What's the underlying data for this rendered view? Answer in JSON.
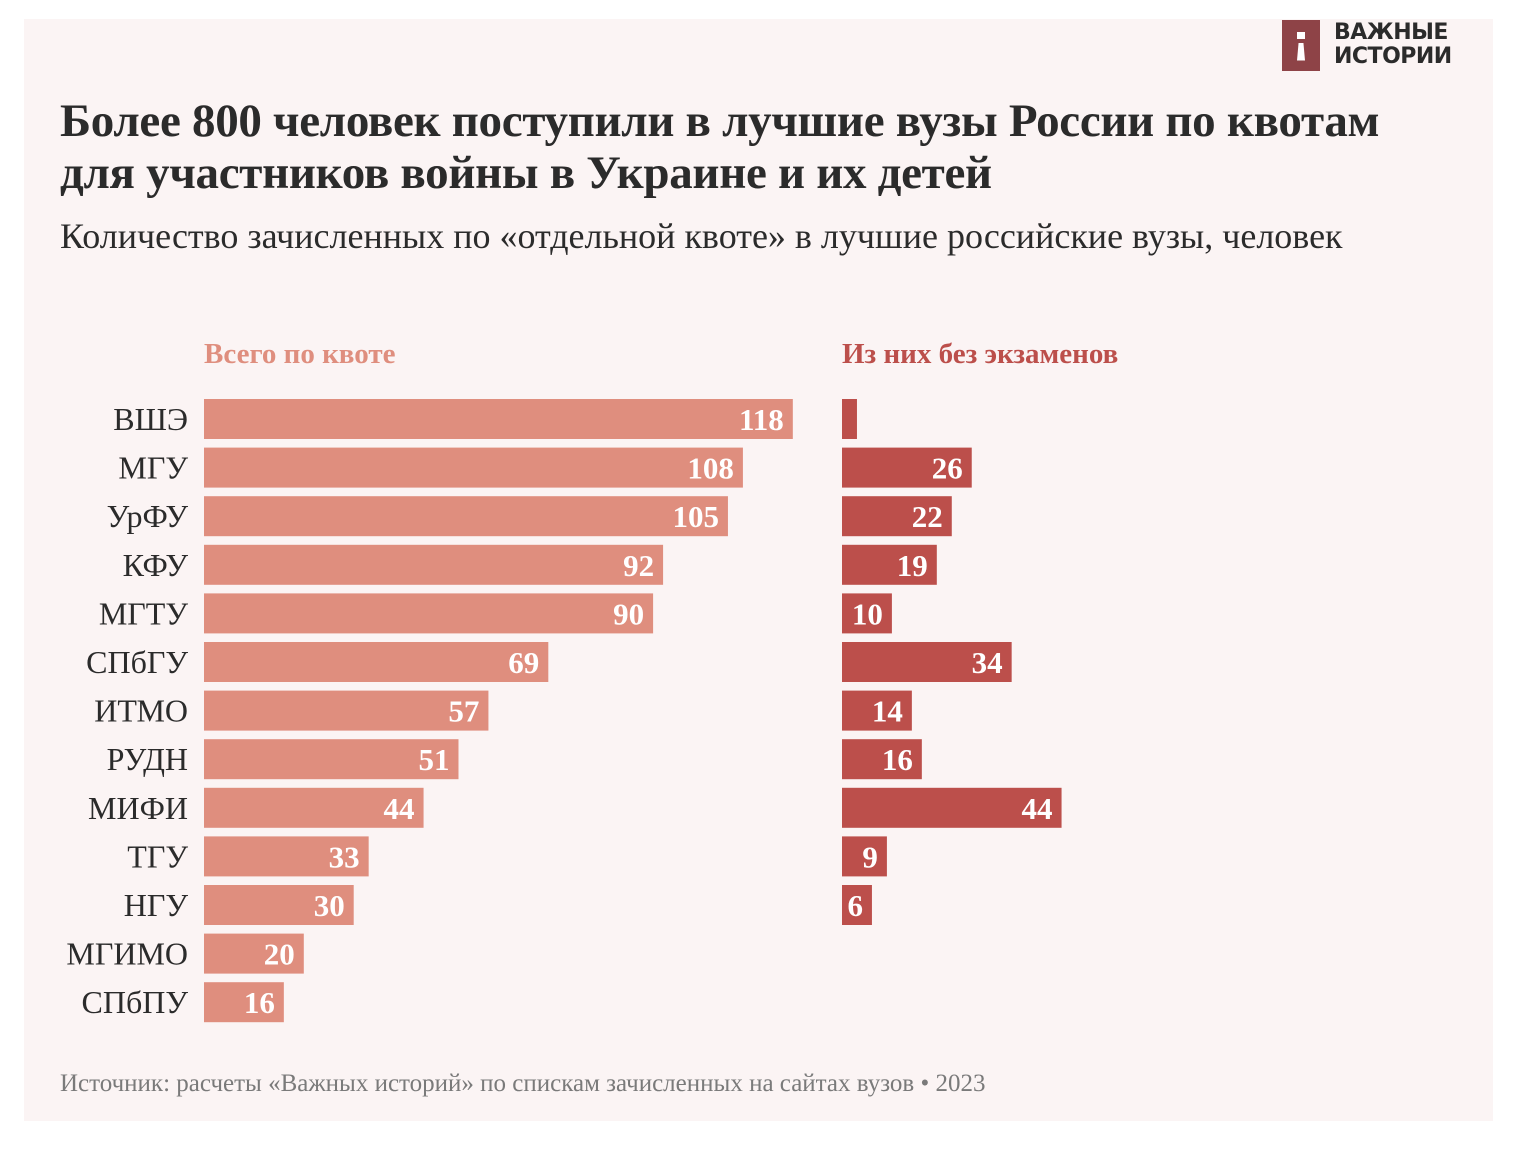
{
  "brand": {
    "line1": "ВАЖНЫЕ",
    "line2": "ИСТОРИИ",
    "color": "#8E4347"
  },
  "header": {
    "title": "Более 800 человек поступили в лучшие вузы России по квотам для участников войны в Украине и их детей",
    "subtitle": "Количество зачисленных по «отдельной квоте» в лучшие российские вузы, человек"
  },
  "footer": {
    "source": "Источник: расчеты «Важных историй» по спискам зачисленных на сайтах вузов • 2023"
  },
  "chart_data": {
    "type": "bar",
    "orientation": "horizontal",
    "title": "Более 800 человек поступили в лучшие вузы России по квотам для участников войны в Украине и их детей",
    "subtitle": "Количество зачисленных по «отдельной квоте» в лучшие российские вузы, человек",
    "xlabel": "",
    "ylabel": "",
    "grid": false,
    "categories": [
      "ВШЭ",
      "МГУ",
      "УрФУ",
      "КФУ",
      "МГТУ",
      "СПбГУ",
      "ИТМО",
      "РУДН",
      "МИФИ",
      "ТГУ",
      "НГУ",
      "МГИМО",
      "СПбПУ"
    ],
    "series": [
      {
        "name": "Всего по квоте",
        "color": "#DF8E7E",
        "values": [
          118,
          108,
          105,
          92,
          90,
          69,
          57,
          51,
          44,
          33,
          30,
          20,
          16
        ],
        "labels": [
          "118",
          "108",
          "105",
          "92",
          "90",
          "69",
          "57",
          "51",
          "44",
          "33",
          "30",
          "20",
          "16"
        ]
      },
      {
        "name": "Из них без экзаменов",
        "color": "#BC4F4B",
        "values": [
          3,
          26,
          22,
          19,
          10,
          34,
          14,
          16,
          44,
          9,
          6,
          null,
          null
        ],
        "labels": [
          "",
          "26",
          "22",
          "19",
          "10",
          "34",
          "14",
          "16",
          "44",
          "9",
          "6",
          "",
          ""
        ]
      }
    ],
    "xlim": [
      0,
      120
    ]
  }
}
